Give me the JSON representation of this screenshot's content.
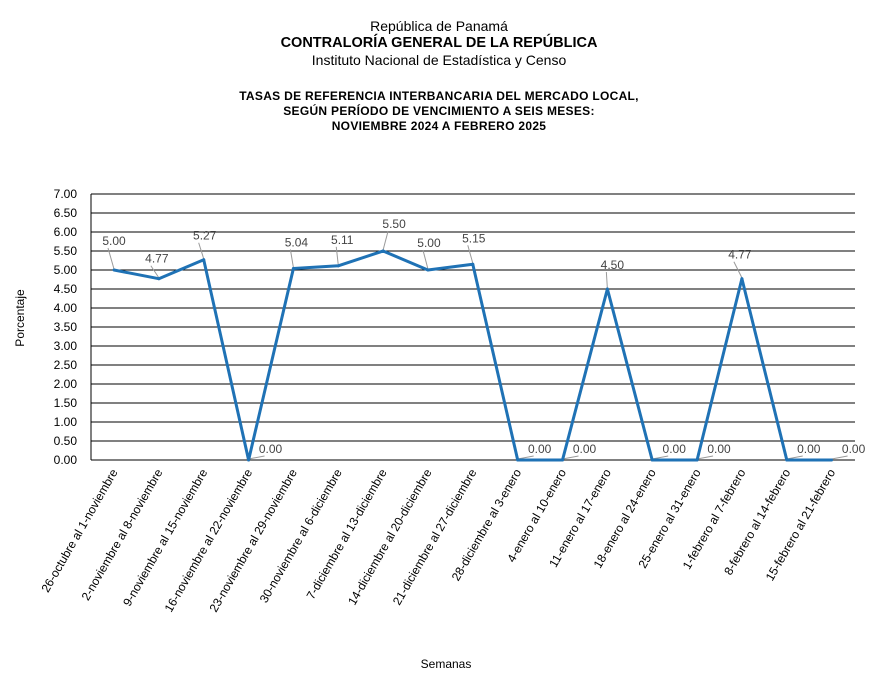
{
  "header": {
    "country": "República de Panamá",
    "institution": "CONTRALORÍA GENERAL DE LA REPÚBLICA",
    "institute": "Instituto Nacional de Estadística y Censo"
  },
  "chart_data": {
    "type": "line",
    "title_lines": [
      "TASAS DE REFERENCIA INTERBANCARIA DEL MERCADO LOCAL,",
      "SEGÚN PERÍODO DE VENCIMIENTO A SEIS MESES:",
      "NOVIEMBRE 2024 A FEBRERO 2025"
    ],
    "xlabel": "Semanas",
    "ylabel": "Porcentaje",
    "ylim": [
      0,
      7
    ],
    "yticks": [
      "0.00",
      "0.50",
      "1.00",
      "1.50",
      "2.00",
      "2.50",
      "3.00",
      "3.50",
      "4.00",
      "4.50",
      "5.00",
      "5.50",
      "6.00",
      "6.50",
      "7.00"
    ],
    "grid": true,
    "line_color": "#1f72b5",
    "categories": [
      "26-octubre al 1-noviembre",
      "2-noviembre al 8-noviembre",
      "9-noviembre al 15-noviembre",
      "16-noviembre al 22-noviembre",
      "23-noviembre al 29-noviembre",
      "30-noviembre al 6-diciembre",
      "7-diciembre al 13-diciembre",
      "14-diciembre al 20-diciembre",
      "21-diciembre al 27-diciembre",
      "28-diciembre al 3-enero",
      "4-enero al 10-enero",
      "11-enero al 17-enero",
      "18-enero al 24-enero",
      "25-enero al 31-enero",
      "1-febrero al 7-febrero",
      "8-febrero al 14-febrero",
      "15-febrero al 21-febrero"
    ],
    "values": [
      5.0,
      4.77,
      5.27,
      0.0,
      5.04,
      5.11,
      5.5,
      5.0,
      5.15,
      0.0,
      0.0,
      4.5,
      0.0,
      0.0,
      4.77,
      0.0,
      0.0
    ],
    "data_labels": [
      "5.00",
      "4.77",
      "5.27",
      "0.00",
      "5.04",
      "5.11",
      "5.50",
      "5.00",
      "5.15",
      "0.00",
      "0.00",
      "4.50",
      "0.00",
      "0.00",
      "4.77",
      "0.00",
      "0.00"
    ]
  }
}
